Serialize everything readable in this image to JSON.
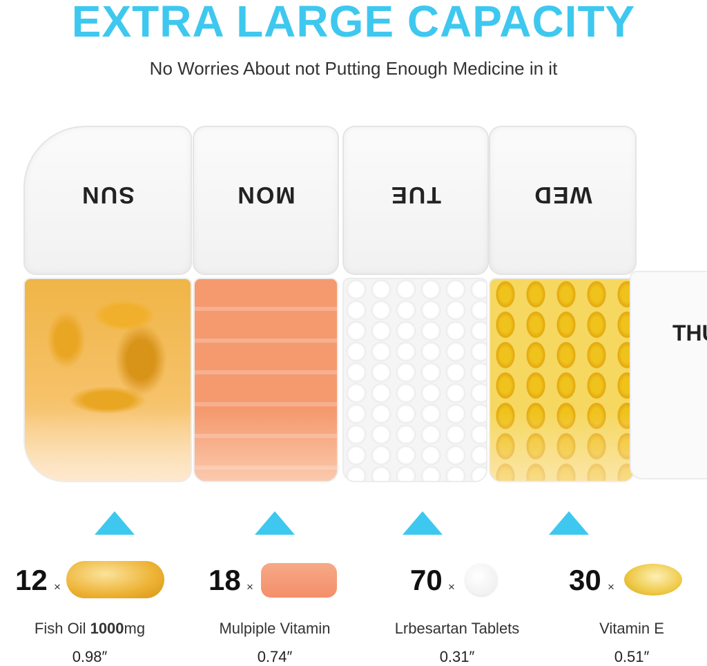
{
  "header": {
    "title": "EXTRA LARGE CAPACITY",
    "subtitle": "No Worries About not Putting Enough Medicine in it"
  },
  "compartments": [
    {
      "day": "SUN",
      "contents": "fish-oil-capsules"
    },
    {
      "day": "MON",
      "contents": "multivitamin-tablets"
    },
    {
      "day": "TUE",
      "contents": "white-tablets"
    },
    {
      "day": "WED",
      "contents": "vitamin-e-softgels"
    },
    {
      "day": "THU",
      "contents": "empty"
    }
  ],
  "colors": {
    "accent": "#3ec8ef"
  },
  "items": [
    {
      "count": "12",
      "times": "×",
      "name_pre": "Fish Oil ",
      "name_bold": "1000",
      "name_post": "mg",
      "size": "0.98″",
      "pill_icon": "fish-oil-capsule"
    },
    {
      "count": "18",
      "times": "×",
      "name": "Mulpiple Vitamin",
      "size": "0.74″",
      "pill_icon": "multivitamin-tablet"
    },
    {
      "count": "70",
      "times": "×",
      "name": "Lrbesartan Tablets",
      "size": "0.31″",
      "pill_icon": "white-tablet"
    },
    {
      "count": "30",
      "times": "×",
      "name": "Vitamin E",
      "size": "0.51″",
      "pill_icon": "vitamin-e-softgel"
    }
  ]
}
